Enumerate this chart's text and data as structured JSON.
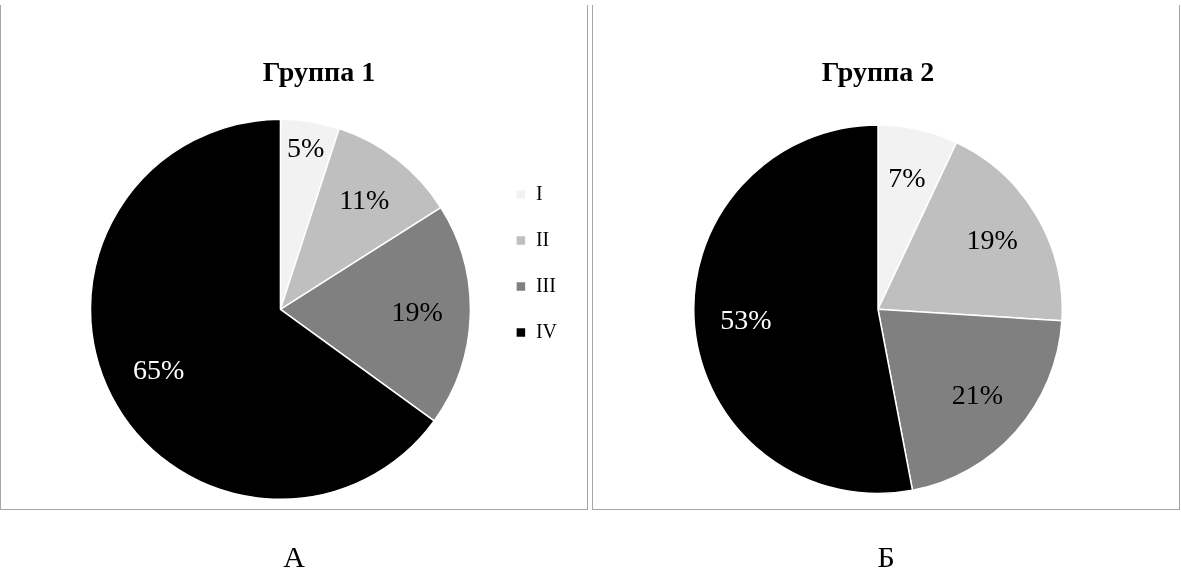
{
  "chart_data": [
    {
      "type": "pie",
      "title": "Группа 1",
      "categories": [
        "I",
        "II",
        "III",
        "IV"
      ],
      "values": [
        5,
        11,
        19,
        65
      ],
      "colors": [
        "#f2f2f2",
        "#bfbfbf",
        "#808080",
        "#000000"
      ],
      "value_labels": [
        "5%",
        "11%",
        "19%",
        "65%"
      ],
      "legend": "right",
      "annotations": [
        "А"
      ]
    },
    {
      "type": "pie",
      "title": "Группа 2",
      "categories": [
        null,
        null,
        null,
        null
      ],
      "values": [
        7,
        19,
        21,
        53
      ],
      "colors": [
        "#f2f2f2",
        "#bfbfbf",
        "#808080",
        "#000000"
      ],
      "value_labels": [
        "7%",
        "19%",
        "21%",
        "53%"
      ],
      "annotations": [
        "Б"
      ]
    }
  ]
}
